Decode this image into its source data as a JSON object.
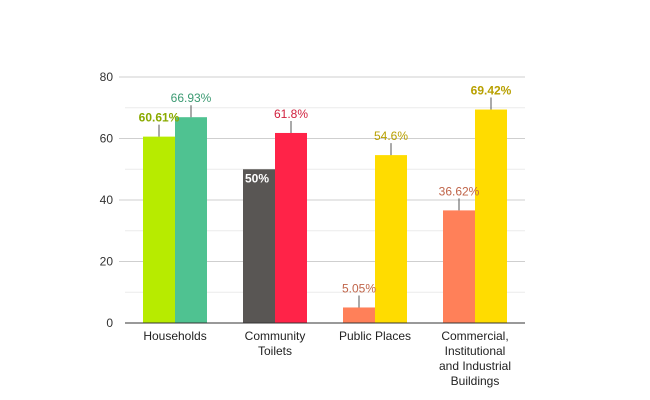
{
  "chart_data": {
    "type": "bar",
    "title": "",
    "xlabel": "",
    "ylabel": "",
    "ylim": [
      0,
      80
    ],
    "yticks": [
      0,
      20,
      40,
      60,
      80
    ],
    "grid": true,
    "legend": "none",
    "categories": [
      [
        "Households"
      ],
      [
        "Community",
        "Toilets"
      ],
      [
        "Public Places"
      ],
      [
        "Commercial,",
        "Institutional",
        "and Industrial",
        "Buildings"
      ]
    ],
    "bars": [
      [
        {
          "value": 60.61,
          "label": "60.61%",
          "color": "#b7eb00",
          "label_color": "#8aaa00",
          "label_inside": false,
          "bold": true
        },
        {
          "value": 66.93,
          "label": "66.93%",
          "color": "#4fc291",
          "label_color": "#3b9a72",
          "label_inside": false,
          "bold": false
        }
      ],
      [
        {
          "value": 50,
          "label": "50%",
          "color": "#595654",
          "label_color": "#ffffff",
          "label_inside": true,
          "bold": true
        },
        {
          "value": 61.8,
          "label": "61.8%",
          "color": "#ff2348",
          "label_color": "#d01f3c",
          "label_inside": false,
          "bold": false
        }
      ],
      [
        {
          "value": 5.05,
          "label": "5.05%",
          "color": "#ff8059",
          "label_color": "#c0654a",
          "label_inside": false,
          "bold": false
        },
        {
          "value": 54.6,
          "label": "54.6%",
          "color": "#ffdc00",
          "label_color": "#b8a000",
          "label_inside": false,
          "bold": false
        }
      ],
      [
        {
          "value": 36.62,
          "label": "36.62%",
          "color": "#ff8059",
          "label_color": "#c0654a",
          "label_inside": false,
          "bold": false
        },
        {
          "value": 69.42,
          "label": "69.42%",
          "color": "#ffdc00",
          "label_color": "#b8a000",
          "label_inside": false,
          "bold": true
        }
      ]
    ]
  }
}
